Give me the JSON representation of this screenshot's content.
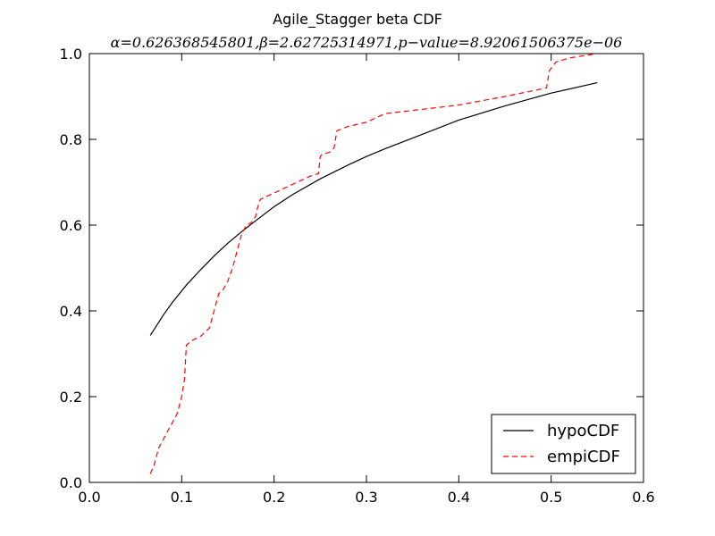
{
  "chart_data": {
    "type": "line",
    "title": "Agile_Stagger beta CDF",
    "subtitle": "α=0.626368545801,β=2.62725314971,p−value=8.92061506375e−06",
    "xlabel": "",
    "ylabel": "",
    "xlim": [
      0.0,
      0.6
    ],
    "ylim": [
      0.0,
      1.0
    ],
    "xticks": [
      0.0,
      0.1,
      0.2,
      0.3,
      0.4,
      0.5,
      0.6
    ],
    "yticks": [
      0.0,
      0.2,
      0.4,
      0.6,
      0.8,
      1.0
    ],
    "xtick_labels": [
      "0.0",
      "0.1",
      "0.2",
      "0.3",
      "0.4",
      "0.5",
      "0.6"
    ],
    "ytick_labels": [
      "0.0",
      "0.2",
      "0.4",
      "0.6",
      "0.8",
      "1.0"
    ],
    "grid": false,
    "legend_position": "bottom-right",
    "series": [
      {
        "name": "hypoCDF",
        "color": "#000000",
        "style": "solid",
        "x": [
          0.066,
          0.08,
          0.09,
          0.105,
          0.12,
          0.135,
          0.15,
          0.165,
          0.18,
          0.2,
          0.22,
          0.25,
          0.28,
          0.3,
          0.32,
          0.35,
          0.4,
          0.45,
          0.5,
          0.55
        ],
        "y": [
          0.343,
          0.39,
          0.42,
          0.46,
          0.495,
          0.528,
          0.558,
          0.585,
          0.61,
          0.643,
          0.671,
          0.708,
          0.74,
          0.76,
          0.778,
          0.803,
          0.845,
          0.878,
          0.908,
          0.932
        ]
      },
      {
        "name": "empiCDF",
        "color": "#ff0000",
        "style": "dashed",
        "x": [
          0.066,
          0.07,
          0.075,
          0.08,
          0.085,
          0.09,
          0.095,
          0.1,
          0.103,
          0.105,
          0.11,
          0.115,
          0.12,
          0.13,
          0.135,
          0.14,
          0.145,
          0.15,
          0.155,
          0.16,
          0.165,
          0.17,
          0.175,
          0.18,
          0.182,
          0.185,
          0.19,
          0.2,
          0.21,
          0.22,
          0.23,
          0.24,
          0.248,
          0.25,
          0.252,
          0.26,
          0.265,
          0.268,
          0.28,
          0.3,
          0.32,
          0.4,
          0.45,
          0.495,
          0.498,
          0.505,
          0.52,
          0.55
        ],
        "y": [
          0.02,
          0.04,
          0.08,
          0.1,
          0.12,
          0.14,
          0.16,
          0.2,
          0.24,
          0.32,
          0.33,
          0.335,
          0.34,
          0.36,
          0.4,
          0.44,
          0.45,
          0.47,
          0.5,
          0.54,
          0.58,
          0.6,
          0.605,
          0.62,
          0.64,
          0.66,
          0.665,
          0.675,
          0.685,
          0.695,
          0.705,
          0.715,
          0.72,
          0.76,
          0.765,
          0.77,
          0.78,
          0.82,
          0.83,
          0.84,
          0.86,
          0.88,
          0.9,
          0.92,
          0.96,
          0.98,
          0.99,
          1.0
        ]
      }
    ]
  }
}
